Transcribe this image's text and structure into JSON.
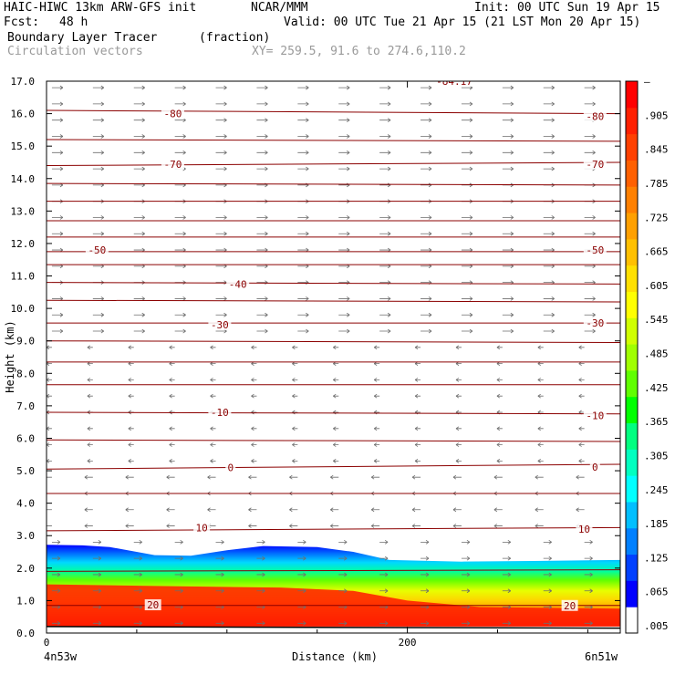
{
  "header": {
    "model": "HAIC-HIWC 13km ARW-GFS init",
    "center": "NCAR/MMM",
    "init": "Init: 00 UTC Sun 19 Apr 15",
    "fcst_label": "Fcst:",
    "fcst_value": "48 h",
    "valid": "Valid: 00 UTC Tue 21 Apr 15 (21 LST Mon 20 Apr 15)",
    "field": "Boundary Layer Tracer",
    "units": "(fraction)",
    "vectors": "Circulation vectors",
    "xy": "XY= 259.5, 91.6 to 274.6,110.2"
  },
  "colors": {
    "contour": "#8b0000",
    "vector": "#6e6e6e"
  },
  "chart_data": {
    "type": "heatmap",
    "title": "Boundary Layer Tracer",
    "xlabel": "Distance (km)",
    "ylabel": "Height (km)",
    "xlim": [
      0,
      318
    ],
    "ylim": [
      0,
      17
    ],
    "x_ticks": [
      {
        "value": 0,
        "label": "0"
      },
      {
        "value": 200,
        "label": "200"
      }
    ],
    "y_ticks": [
      "0.0",
      "1.0",
      "2.0",
      "3.0",
      "4.0",
      "5.0",
      "6.0",
      "7.0",
      "8.0",
      "9.0",
      "10.0",
      "11.0",
      "12.0",
      "13.0",
      "14.0",
      "15.0",
      "16.0",
      "17.0"
    ],
    "endpoint_labels": {
      "left": "4n53w",
      "right": "6n51w"
    },
    "colorbar": {
      "labels": [
        ".005",
        ".065",
        ".125",
        ".185",
        ".245",
        ".305",
        ".365",
        ".425",
        ".485",
        ".545",
        ".605",
        ".665",
        ".725",
        ".785",
        ".845",
        ".905",
        "–"
      ],
      "colors": [
        "#ffffff",
        "#0000ff",
        "#0040ff",
        "#0080ff",
        "#00bfff",
        "#00ffff",
        "#00ffc0",
        "#00ff80",
        "#00ff00",
        "#60ff00",
        "#a0ff00",
        "#d0ff00",
        "#ffff00",
        "#ffe000",
        "#ffc000",
        "#ffa000",
        "#ff8000",
        "#ff6000",
        "#ff4000",
        "#ff2000",
        "#ff0000"
      ]
    },
    "tracer_layer": {
      "top_km": [
        [
          0,
          2.72
        ],
        [
          20,
          2.7
        ],
        [
          35,
          2.65
        ],
        [
          60,
          2.4
        ],
        [
          80,
          2.38
        ],
        [
          100,
          2.55
        ],
        [
          120,
          2.68
        ],
        [
          150,
          2.65
        ],
        [
          170,
          2.5
        ],
        [
          190,
          2.25
        ],
        [
          230,
          2.2
        ],
        [
          270,
          2.22
        ],
        [
          318,
          2.25
        ]
      ],
      "red_top_km": [
        [
          0,
          1.5
        ],
        [
          60,
          1.45
        ],
        [
          130,
          1.4
        ],
        [
          170,
          1.3
        ],
        [
          200,
          1.0
        ],
        [
          240,
          0.8
        ],
        [
          318,
          0.75
        ]
      ]
    },
    "contour_labels": [
      {
        "value": "-84.17",
        "x_km": 226,
        "y_km": 17.0
      },
      {
        "value": "-80",
        "x_km": 70,
        "y_km": 16.0
      },
      {
        "value": "-80",
        "x_km": 304,
        "y_km": 15.92
      },
      {
        "value": "-70",
        "x_km": 70,
        "y_km": 14.45
      },
      {
        "value": "-70",
        "x_km": 304,
        "y_km": 14.45
      },
      {
        "value": "-50",
        "x_km": 28,
        "y_km": 11.8
      },
      {
        "value": "-50",
        "x_km": 304,
        "y_km": 11.8
      },
      {
        "value": "-40",
        "x_km": 106,
        "y_km": 10.75
      },
      {
        "value": "-30",
        "x_km": 96,
        "y_km": 9.5
      },
      {
        "value": "-30",
        "x_km": 304,
        "y_km": 9.55
      },
      {
        "value": "-10",
        "x_km": 96,
        "y_km": 6.8
      },
      {
        "value": "-10",
        "x_km": 304,
        "y_km": 6.7
      },
      {
        "value": "0",
        "x_km": 102,
        "y_km": 5.1
      },
      {
        "value": "0",
        "x_km": 304,
        "y_km": 5.12
      },
      {
        "value": "10",
        "x_km": 86,
        "y_km": 3.25
      },
      {
        "value": "10",
        "x_km": 298,
        "y_km": 3.2
      },
      {
        "value": "20",
        "x_km": 59,
        "y_km": 0.87
      },
      {
        "value": "20",
        "x_km": 290,
        "y_km": 0.85
      }
    ],
    "contour_lines_km": [
      [
        [
          0,
          16.1
        ],
        [
          318,
          16.0
        ]
      ],
      [
        [
          0,
          15.2
        ],
        [
          318,
          15.15
        ]
      ],
      [
        [
          0,
          14.4
        ],
        [
          318,
          14.5
        ]
      ],
      [
        [
          0,
          13.85
        ],
        [
          318,
          13.8
        ]
      ],
      [
        [
          0,
          13.3
        ],
        [
          318,
          13.3
        ]
      ],
      [
        [
          0,
          12.7
        ],
        [
          318,
          12.7
        ]
      ],
      [
        [
          0,
          12.2
        ],
        [
          318,
          12.2
        ]
      ],
      [
        [
          0,
          11.75
        ],
        [
          318,
          11.75
        ]
      ],
      [
        [
          0,
          11.35
        ],
        [
          318,
          11.35
        ]
      ],
      [
        [
          0,
          10.8
        ],
        [
          318,
          10.75
        ]
      ],
      [
        [
          0,
          10.25
        ],
        [
          318,
          10.2
        ]
      ],
      [
        [
          0,
          9.55
        ],
        [
          318,
          9.55
        ]
      ],
      [
        [
          0,
          9.0
        ],
        [
          318,
          8.95
        ]
      ],
      [
        [
          0,
          8.35
        ],
        [
          318,
          8.35
        ]
      ],
      [
        [
          0,
          7.65
        ],
        [
          318,
          7.65
        ]
      ],
      [
        [
          0,
          6.8
        ],
        [
          318,
          6.75
        ]
      ],
      [
        [
          0,
          5.95
        ],
        [
          318,
          5.9
        ]
      ],
      [
        [
          0,
          5.05
        ],
        [
          318,
          5.2
        ]
      ],
      [
        [
          0,
          4.3
        ],
        [
          318,
          4.3
        ]
      ],
      [
        [
          0,
          3.15
        ],
        [
          318,
          3.25
        ]
      ],
      [
        [
          0,
          1.9
        ],
        [
          318,
          1.95
        ]
      ],
      [
        [
          0,
          0.85
        ],
        [
          318,
          0.85
        ]
      ]
    ]
  }
}
